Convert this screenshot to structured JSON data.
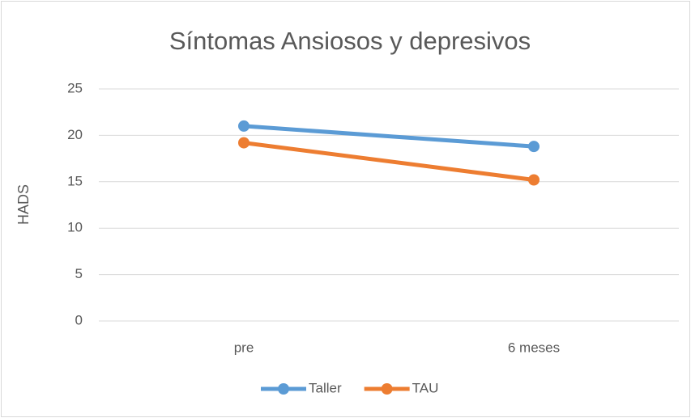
{
  "chart_data": {
    "type": "line",
    "title": "Síntomas Ansiosos y depresivos",
    "y_label": "HADS",
    "categories": [
      "pre",
      "6 meses"
    ],
    "series": [
      {
        "name": "Taller",
        "color": "#5b9bd5",
        "values": [
          21.0,
          18.8
        ]
      },
      {
        "name": "TAU",
        "color": "#ed7d31",
        "values": [
          19.2,
          15.2
        ]
      }
    ],
    "ylim": [
      0,
      25
    ],
    "yticks": [
      0,
      5,
      10,
      15,
      20,
      25
    ],
    "grid": true,
    "legend": "bottom"
  }
}
